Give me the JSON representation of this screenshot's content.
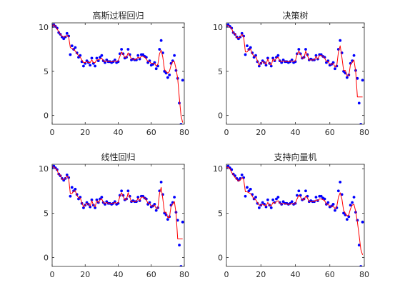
{
  "chart_data": [
    {
      "type": "line",
      "title": "高斯过程回归",
      "xlim": [
        0,
        80
      ],
      "ylim": [
        -1,
        10.5
      ],
      "xticks": [
        "0",
        "20",
        "40",
        "60",
        "80"
      ],
      "yticks": [
        "0",
        "5",
        "10"
      ],
      "series": [
        {
          "style": "scatter",
          "color": "#0000ff",
          "values": [
            10.1,
            10.3,
            10.1,
            9.9,
            9.4,
            9.2,
            8.9,
            8.7,
            8.9,
            9.3,
            9.0,
            6.9,
            7.9,
            7.5,
            7.7,
            7.1,
            6.6,
            6.8,
            6.1,
            5.6,
            5.9,
            6.2,
            6.0,
            5.7,
            6.5,
            5.9,
            5.6,
            6.5,
            6.2,
            6.6,
            6.8,
            6.2,
            6.0,
            6.3,
            6.1,
            6.1,
            6.0,
            6.1,
            6.3,
            6.0,
            6.1,
            7.0,
            7.5,
            7.0,
            6.5,
            6.6,
            7.5,
            6.9,
            6.3,
            6.4,
            6.3,
            6.3,
            6.8,
            6.4,
            6.9,
            6.9,
            6.7,
            6.6,
            6.0,
            6.2,
            5.7,
            5.8,
            6.0,
            5.3,
            5.6,
            7.5,
            8.5,
            7.1,
            5.0,
            4.8,
            4.3,
            4.6,
            5.9,
            6.2,
            6.8,
            5.1,
            4.2,
            1.4,
            -1.0,
            4.0
          ]
        },
        {
          "style": "line",
          "color": "#ff0000",
          "values": [
            10.1,
            10.3,
            10.1,
            9.8,
            9.5,
            9.2,
            9.0,
            8.9,
            8.9,
            9.1,
            8.9,
            7.7,
            7.6,
            7.5,
            7.3,
            7.0,
            6.8,
            6.6,
            6.3,
            6.0,
            6.0,
            6.1,
            6.0,
            6.0,
            6.3,
            6.0,
            6.0,
            6.3,
            6.3,
            6.4,
            6.5,
            6.2,
            6.1,
            6.2,
            6.1,
            6.1,
            6.1,
            6.1,
            6.2,
            6.1,
            6.2,
            6.7,
            7.2,
            6.9,
            6.6,
            6.6,
            7.1,
            6.8,
            6.4,
            6.4,
            6.3,
            6.4,
            6.6,
            6.5,
            6.7,
            6.7,
            6.6,
            6.4,
            6.1,
            6.1,
            5.9,
            5.9,
            5.9,
            5.6,
            5.8,
            7.0,
            7.4,
            6.6,
            5.2,
            5.0,
            4.8,
            5.0,
            5.7,
            6.1,
            6.1,
            5.3,
            4.2,
            2.0,
            0.0,
            -0.8
          ]
        }
      ]
    },
    {
      "type": "line",
      "title": "决策树",
      "xlim": [
        0,
        80
      ],
      "ylim": [
        -1,
        10.5
      ],
      "xticks": [
        "0",
        "20",
        "40",
        "60",
        "80"
      ],
      "yticks": [
        "0",
        "5",
        "10"
      ],
      "series": [
        {
          "style": "scatter",
          "color": "#0000ff",
          "values": [
            10.1,
            10.3,
            10.1,
            9.9,
            9.4,
            9.2,
            8.9,
            8.7,
            8.9,
            9.3,
            9.0,
            6.9,
            7.9,
            7.5,
            7.7,
            7.1,
            6.6,
            6.8,
            6.1,
            5.6,
            5.9,
            6.2,
            6.0,
            5.7,
            6.5,
            5.9,
            5.6,
            6.5,
            6.2,
            6.6,
            6.8,
            6.2,
            6.0,
            6.3,
            6.1,
            6.1,
            6.0,
            6.1,
            6.3,
            6.0,
            6.1,
            7.0,
            7.5,
            7.0,
            6.5,
            6.6,
            7.5,
            6.9,
            6.3,
            6.4,
            6.3,
            6.3,
            6.8,
            6.4,
            6.9,
            6.9,
            6.7,
            6.6,
            6.0,
            6.2,
            5.7,
            5.8,
            6.0,
            5.3,
            5.6,
            7.5,
            8.5,
            7.1,
            5.0,
            4.8,
            4.3,
            4.6,
            5.9,
            6.2,
            6.8,
            5.1,
            4.2,
            1.4,
            -1.0,
            4.0
          ]
        },
        {
          "style": "line",
          "color": "#ff0000",
          "values": [
            10.2,
            10.2,
            10.0,
            9.9,
            9.3,
            9.3,
            8.8,
            8.8,
            8.9,
            9.2,
            8.9,
            7.2,
            7.2,
            7.5,
            7.5,
            7.0,
            6.7,
            6.7,
            6.2,
            5.7,
            5.9,
            6.1,
            6.0,
            5.8,
            6.4,
            5.9,
            5.7,
            6.4,
            6.2,
            6.5,
            6.6,
            6.2,
            6.1,
            6.2,
            6.1,
            6.1,
            6.1,
            6.1,
            6.2,
            6.1,
            6.2,
            6.9,
            7.3,
            6.9,
            6.5,
            6.5,
            7.3,
            6.8,
            6.3,
            6.3,
            6.3,
            6.3,
            6.7,
            6.4,
            6.8,
            6.8,
            6.7,
            6.5,
            6.1,
            6.1,
            5.8,
            5.8,
            5.9,
            5.5,
            5.6,
            7.2,
            7.9,
            6.6,
            5.1,
            5.1,
            4.5,
            4.5,
            5.8,
            6.0,
            6.3,
            5.0,
            2.1,
            2.1,
            2.1,
            2.1
          ]
        }
      ]
    },
    {
      "type": "line",
      "title": "线性回归",
      "xlim": [
        0,
        80
      ],
      "ylim": [
        -1,
        10.5
      ],
      "xticks": [
        "0",
        "20",
        "40",
        "60",
        "80"
      ],
      "yticks": [
        "0",
        "5",
        "10"
      ],
      "series": [
        {
          "style": "scatter",
          "color": "#0000ff",
          "values": [
            10.1,
            10.3,
            10.1,
            9.9,
            9.4,
            9.2,
            8.9,
            8.7,
            8.9,
            9.3,
            9.0,
            6.9,
            7.9,
            7.5,
            7.7,
            7.1,
            6.6,
            6.8,
            6.1,
            5.6,
            5.9,
            6.2,
            6.0,
            5.7,
            6.5,
            5.9,
            5.6,
            6.5,
            6.2,
            6.6,
            6.8,
            6.2,
            6.0,
            6.3,
            6.1,
            6.1,
            6.0,
            6.1,
            6.3,
            6.0,
            6.1,
            7.0,
            7.5,
            7.0,
            6.5,
            6.6,
            7.5,
            6.9,
            6.3,
            6.4,
            6.3,
            6.3,
            6.8,
            6.4,
            6.9,
            6.9,
            6.7,
            6.6,
            6.0,
            6.2,
            5.7,
            5.8,
            6.0,
            5.3,
            5.6,
            7.5,
            8.5,
            7.1,
            5.0,
            4.8,
            4.3,
            4.6,
            5.9,
            6.2,
            6.8,
            5.1,
            4.2,
            1.4,
            -1.0,
            4.0
          ]
        },
        {
          "style": "line",
          "color": "#ff0000",
          "values": [
            10.2,
            10.2,
            10.0,
            9.9,
            9.3,
            9.3,
            8.8,
            8.8,
            8.9,
            9.2,
            8.9,
            7.2,
            7.2,
            7.5,
            7.5,
            7.0,
            6.7,
            6.7,
            6.2,
            5.7,
            5.9,
            6.1,
            6.0,
            5.8,
            6.4,
            5.9,
            5.7,
            6.4,
            6.2,
            6.5,
            6.6,
            6.2,
            6.1,
            6.2,
            6.1,
            6.1,
            6.1,
            6.1,
            6.2,
            6.1,
            6.2,
            6.9,
            7.3,
            6.9,
            6.5,
            6.5,
            7.3,
            6.8,
            6.3,
            6.3,
            6.3,
            6.3,
            6.7,
            6.4,
            6.8,
            6.8,
            6.7,
            6.5,
            6.1,
            6.1,
            5.8,
            5.8,
            5.9,
            5.5,
            5.6,
            7.2,
            7.9,
            6.6,
            5.1,
            5.1,
            4.5,
            4.5,
            5.8,
            6.0,
            6.3,
            5.0,
            2.1,
            2.1,
            2.1,
            2.1
          ]
        }
      ]
    },
    {
      "type": "line",
      "title": "支持向量机",
      "xlim": [
        0,
        80
      ],
      "ylim": [
        -1,
        10.5
      ],
      "xticks": [
        "0",
        "20",
        "40",
        "60",
        "80"
      ],
      "yticks": [
        "0",
        "5",
        "10"
      ],
      "series": [
        {
          "style": "scatter",
          "color": "#0000ff",
          "values": [
            10.1,
            10.3,
            10.1,
            9.9,
            9.4,
            9.2,
            8.9,
            8.7,
            8.9,
            9.3,
            9.0,
            6.9,
            7.9,
            7.5,
            7.7,
            7.1,
            6.6,
            6.8,
            6.1,
            5.6,
            5.9,
            6.2,
            6.0,
            5.7,
            6.5,
            5.9,
            5.6,
            6.5,
            6.2,
            6.6,
            6.8,
            6.2,
            6.0,
            6.3,
            6.1,
            6.1,
            6.0,
            6.1,
            6.3,
            6.0,
            6.1,
            7.0,
            7.5,
            7.0,
            6.5,
            6.6,
            7.5,
            6.9,
            6.3,
            6.4,
            6.3,
            6.3,
            6.8,
            6.4,
            6.9,
            6.9,
            6.7,
            6.6,
            6.0,
            6.2,
            5.7,
            5.8,
            6.0,
            5.3,
            5.6,
            7.5,
            8.5,
            7.1,
            5.0,
            4.8,
            4.3,
            4.6,
            5.9,
            6.2,
            6.8,
            5.1,
            4.2,
            1.4,
            -1.0,
            4.0
          ]
        },
        {
          "style": "line",
          "color": "#ff0000",
          "values": [
            10.1,
            10.2,
            10.0,
            9.6,
            9.3,
            9.0,
            8.8,
            8.6,
            8.7,
            9.0,
            8.8,
            7.4,
            7.4,
            7.3,
            7.2,
            6.9,
            6.6,
            6.5,
            6.2,
            5.9,
            5.9,
            6.0,
            5.9,
            5.8,
            6.2,
            5.9,
            5.8,
            6.2,
            6.1,
            6.3,
            6.4,
            6.1,
            6.0,
            6.1,
            6.1,
            6.0,
            6.0,
            6.0,
            6.1,
            6.0,
            6.1,
            6.6,
            7.0,
            6.8,
            6.5,
            6.5,
            6.9,
            6.7,
            6.3,
            6.3,
            6.3,
            6.3,
            6.5,
            6.4,
            6.6,
            6.6,
            6.5,
            6.4,
            6.0,
            6.0,
            5.8,
            5.8,
            5.8,
            5.5,
            5.7,
            6.8,
            7.3,
            6.6,
            5.3,
            5.0,
            4.7,
            4.8,
            5.5,
            5.9,
            6.0,
            5.2,
            4.0,
            2.5,
            0.9,
            0.3
          ]
        }
      ]
    }
  ]
}
